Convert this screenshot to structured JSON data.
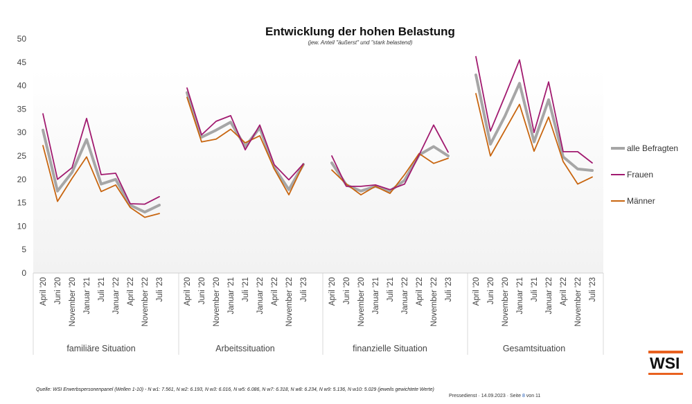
{
  "header": {
    "title": "Entwicklung der hohen Belastung",
    "subtitle": "(jew. Anteil \"äußerst\" und \"stark belastend)"
  },
  "chart_data": {
    "type": "line",
    "title": "Entwicklung der hohen Belastung",
    "subtitle": "(jew. Anteil \"äußerst\" und \"stark belastend)",
    "ylim": [
      0,
      50
    ],
    "yticks": [
      0,
      5,
      10,
      15,
      20,
      25,
      30,
      35,
      40,
      45,
      50
    ],
    "grid": false,
    "legend_position": "right",
    "categories": [
      "April '20",
      "Juni '20",
      "November '20",
      "Januar '21",
      "Juli '21",
      "Januar '22",
      "April '22",
      "November '22",
      "Juli '23"
    ],
    "groups": [
      {
        "name": "familiäre Situation",
        "series": [
          {
            "name": "alle Befragten",
            "values": [
              30.5,
              17.5,
              21.5,
              28.5,
              19.0,
              20.0,
              14.5,
              13.0,
              14.5
            ]
          },
          {
            "name": "Frauen",
            "values": [
              34.0,
              20.0,
              22.5,
              33.0,
              21.0,
              21.3,
              14.8,
              14.7,
              16.3
            ]
          },
          {
            "name": "Männer",
            "values": [
              27.2,
              15.3,
              20.2,
              24.8,
              17.4,
              18.8,
              14.0,
              11.9,
              12.7
            ]
          }
        ]
      },
      {
        "name": "Arbeitssituation",
        "series": [
          {
            "name": "alle Befragten",
            "values": [
              38.5,
              29.0,
              30.5,
              32.2,
              27.0,
              31.0,
              22.5,
              17.8,
              23.2
            ]
          },
          {
            "name": "Frauen",
            "values": [
              39.5,
              29.5,
              32.4,
              33.6,
              26.3,
              31.6,
              23.1,
              19.9,
              23.3
            ]
          },
          {
            "name": "Männer",
            "values": [
              37.5,
              28.0,
              28.6,
              30.7,
              27.8,
              29.3,
              22.2,
              16.7,
              23.2
            ]
          }
        ]
      },
      {
        "name": "finanzielle Situation",
        "series": [
          {
            "name": "alle Befragten",
            "values": [
              23.5,
              18.8,
              17.5,
              18.5,
              17.5,
              19.8,
              25.2,
              27.0,
              25.0
            ]
          },
          {
            "name": "Frauen",
            "values": [
              25.0,
              18.5,
              18.5,
              18.8,
              17.8,
              19.0,
              25.2,
              31.6,
              25.8
            ]
          },
          {
            "name": "Männer",
            "values": [
              22.0,
              19.0,
              16.7,
              18.5,
              17.0,
              21.0,
              25.5,
              23.4,
              24.5
            ]
          }
        ]
      },
      {
        "name": "Gesamtsituation",
        "series": [
          {
            "name": "alle Befragten",
            "values": [
              42.3,
              27.5,
              33.5,
              40.5,
              28.0,
              37.0,
              24.8,
              22.2,
              21.9
            ]
          },
          {
            "name": "Frauen",
            "values": [
              46.2,
              30.3,
              37.8,
              45.5,
              30.0,
              40.8,
              25.9,
              25.9,
              23.5
            ]
          },
          {
            "name": "Männer",
            "values": [
              38.3,
              25.0,
              30.5,
              36.0,
              26.0,
              33.3,
              23.8,
              19.0,
              20.5
            ]
          }
        ]
      }
    ]
  },
  "legend": [
    {
      "label": "alle Befragten",
      "color": "#a6a6a6"
    },
    {
      "label": "Frauen",
      "color": "#a11a6f"
    },
    {
      "label": "Männer",
      "color": "#c8650f"
    }
  ],
  "source_text": "Quelle: WSI Erwerbspersonenpanel (Wellen 1-10) - N w1: 7.561, N w2: 6.193, N w3: 6.016, N w5: 6.086, N w7: 6.318, N w8: 6.234, N w9: 5.136, N w10: 5.029  (jeweils gewichtete Werte)",
  "footer": {
    "label": "Pressedienst",
    "sep": "·",
    "date": "14.09.2023",
    "page_label": "Seite",
    "page_num": "8",
    "page_of": "von 11"
  },
  "logo": {
    "text": "WSI"
  }
}
